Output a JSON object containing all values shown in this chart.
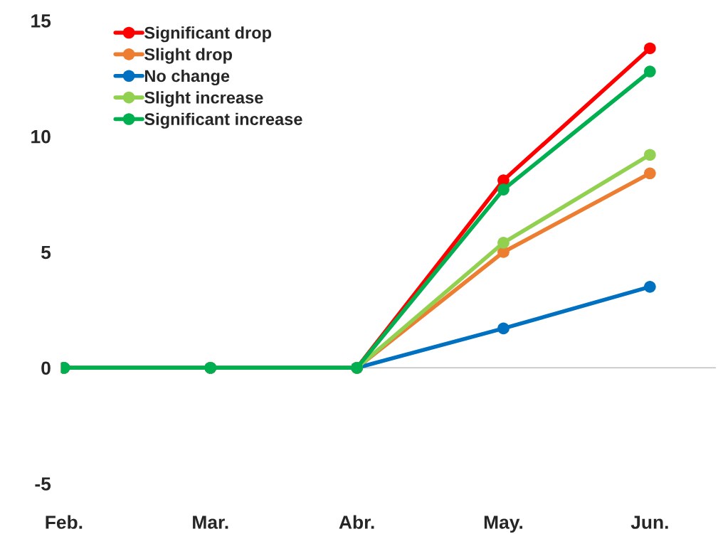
{
  "chart_data": {
    "type": "line",
    "categories": [
      "Feb.",
      "Mar.",
      "Abr.",
      "May.",
      "Jun."
    ],
    "series": [
      {
        "name": "Significant drop",
        "color": "#ff0000",
        "values": [
          0,
          0,
          0,
          8.1,
          13.8
        ]
      },
      {
        "name": "Slight drop",
        "color": "#ed7d31",
        "values": [
          0,
          0,
          0,
          5.0,
          8.4
        ]
      },
      {
        "name": "No change",
        "color": "#0070c0",
        "values": [
          0,
          0,
          0,
          1.7,
          3.5
        ]
      },
      {
        "name": "Slight increase",
        "color": "#92d050",
        "values": [
          0,
          0,
          0,
          5.4,
          9.2
        ]
      },
      {
        "name": "Significant increase",
        "color": "#00b050",
        "values": [
          0,
          0,
          0,
          7.7,
          12.8
        ]
      }
    ],
    "ylim": [
      -5,
      15
    ],
    "yticks": [
      -5,
      0,
      5,
      10,
      15
    ],
    "grid": false,
    "ref_lines": [
      {
        "axis": "y",
        "value": 0,
        "color": "#bfbfbf"
      }
    ],
    "legend": "top left",
    "marker": "circle",
    "line_style": "solid"
  }
}
